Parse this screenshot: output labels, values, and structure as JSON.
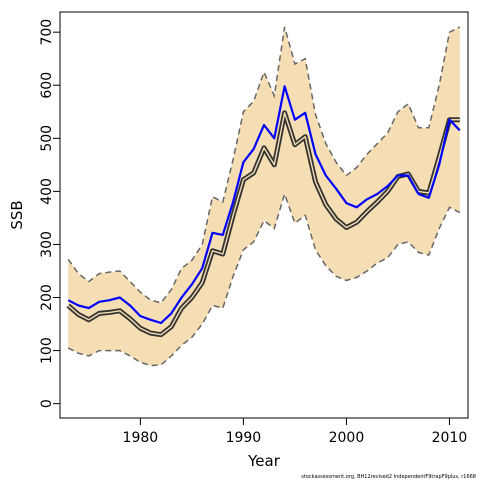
{
  "chart_data": {
    "type": "line",
    "title": "",
    "xlabel": "Year",
    "ylabel": "SSB",
    "xlim": [
      1972.2,
      2011.8
    ],
    "ylim": [
      -27,
      738
    ],
    "xticks": [
      1980,
      1990,
      2000,
      2010
    ],
    "yticks": [
      0,
      100,
      200,
      300,
      400,
      500,
      600,
      700
    ],
    "grid": false,
    "legend": "none",
    "x": [
      1973,
      1974,
      1975,
      1976,
      1977,
      1978,
      1979,
      1980,
      1981,
      1982,
      1983,
      1984,
      1985,
      1986,
      1987,
      1988,
      1989,
      1990,
      1991,
      1992,
      1993,
      1994,
      1995,
      1996,
      1997,
      1998,
      1999,
      2000,
      2001,
      2002,
      2003,
      2004,
      2005,
      2006,
      2007,
      2008,
      2009,
      2010,
      2011
    ],
    "series": [
      {
        "role": "band_upper",
        "values": [
          272,
          245,
          230,
          245,
          248,
          250,
          230,
          210,
          195,
          190,
          215,
          255,
          270,
          300,
          390,
          380,
          460,
          550,
          570,
          625,
          580,
          710,
          640,
          650,
          545,
          490,
          455,
          430,
          445,
          470,
          490,
          510,
          550,
          565,
          520,
          520,
          600,
          700,
          710
        ]
      },
      {
        "role": "band_lower",
        "values": [
          105,
          95,
          90,
          100,
          100,
          100,
          90,
          78,
          72,
          73,
          90,
          110,
          125,
          150,
          185,
          180,
          240,
          290,
          305,
          345,
          330,
          395,
          340,
          355,
          290,
          260,
          240,
          232,
          238,
          250,
          265,
          275,
          300,
          305,
          285,
          280,
          330,
          370,
          360
        ]
      },
      {
        "role": "estimate",
        "values": [
          195,
          185,
          180,
          192,
          195,
          200,
          185,
          165,
          158,
          152,
          170,
          200,
          225,
          255,
          322,
          318,
          380,
          455,
          480,
          525,
          500,
          598,
          535,
          548,
          470,
          430,
          405,
          378,
          370,
          385,
          395,
          410,
          430,
          430,
          395,
          388,
          450,
          535,
          515
        ]
      },
      {
        "role": "alternative",
        "values": [
          185,
          168,
          158,
          170,
          172,
          175,
          160,
          142,
          133,
          130,
          145,
          180,
          200,
          228,
          288,
          282,
          355,
          422,
          435,
          482,
          450,
          548,
          488,
          503,
          418,
          375,
          348,
          332,
          342,
          362,
          380,
          400,
          428,
          433,
          400,
          397,
          465,
          535,
          535
        ]
      }
    ],
    "colors": {
      "band_fill": "#f5deb3",
      "band_edge": "#666666",
      "estimate": "#0000ff",
      "alternative_outer": "#333333",
      "alternative_inner": "#f5deb3"
    },
    "credit": "stockassessment.org, BH12revised2 IndependentF9trapF9plus, r1668"
  }
}
